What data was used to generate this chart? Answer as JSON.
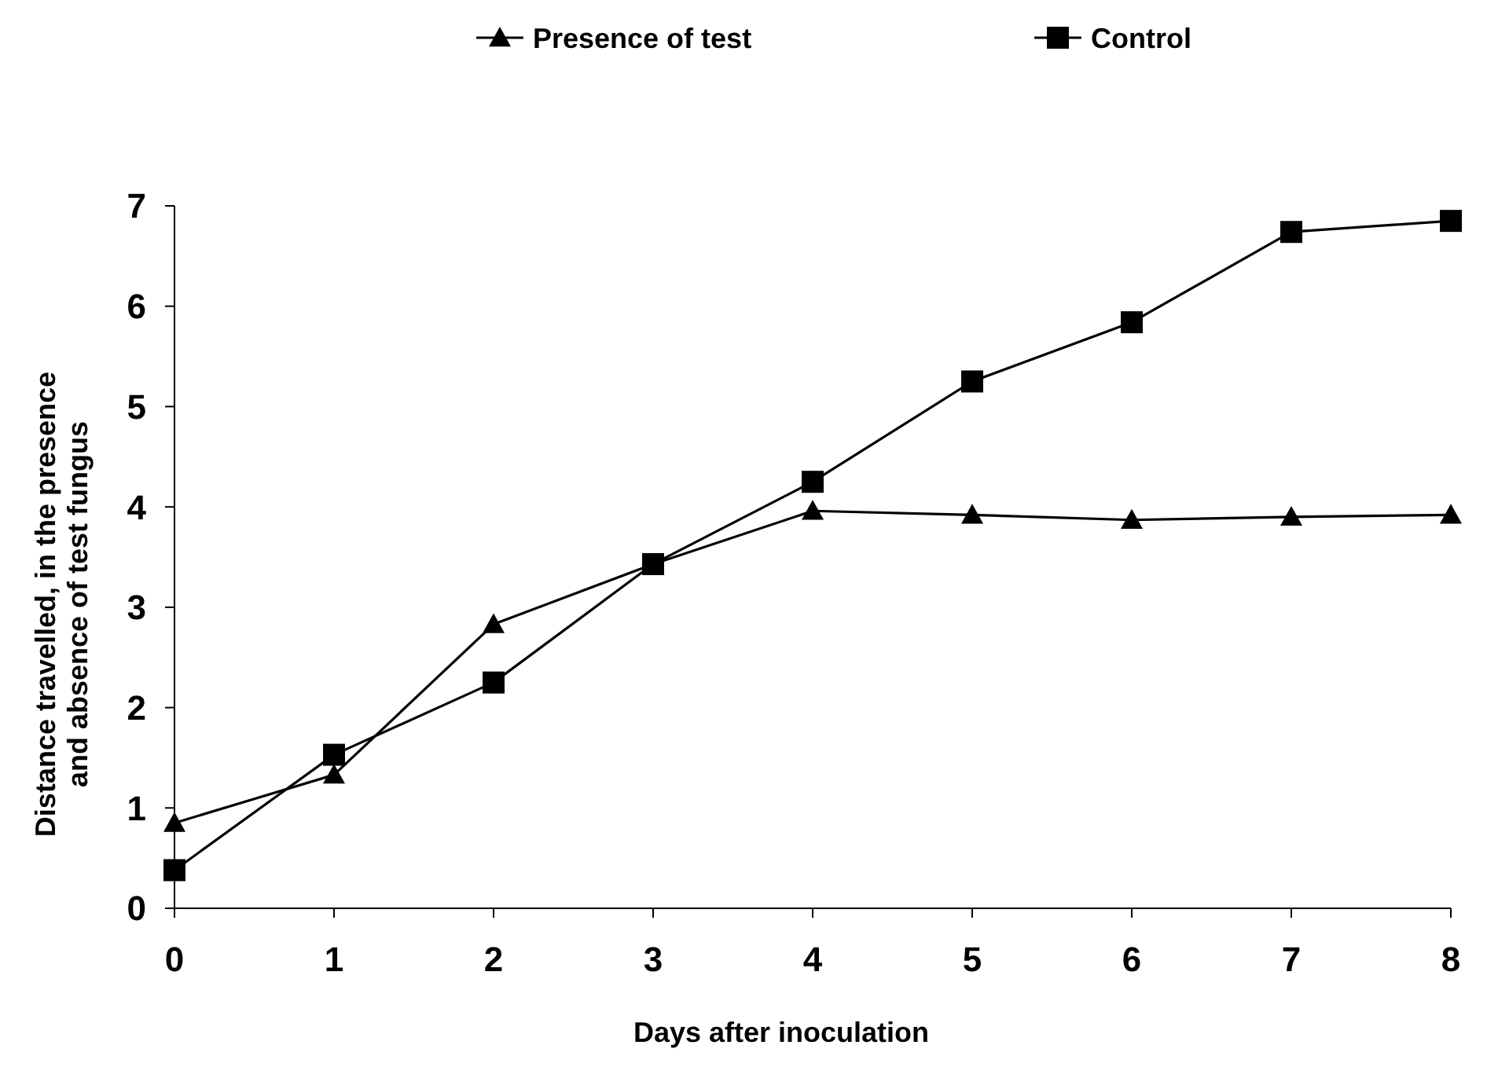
{
  "chart_data": {
    "type": "line",
    "xlabel": "Days after inoculation",
    "ylabel": "Distance travelled, in the presence and absence of test fungus",
    "categories": [
      "0",
      "1",
      "2",
      "3",
      "4",
      "5",
      "6",
      "7",
      "8"
    ],
    "series": [
      {
        "name": "Presence of test",
        "color": "#000000",
        "marker": "triangle",
        "values": [
          0.85,
          1.33,
          2.83,
          3.43,
          3.96,
          3.92,
          3.87,
          3.9,
          3.92
        ]
      },
      {
        "name": "Control",
        "color": "#000000",
        "marker": "square",
        "values": [
          0.38,
          1.53,
          2.25,
          3.43,
          4.25,
          5.25,
          5.84,
          6.74,
          6.85
        ]
      }
    ],
    "ylim": [
      0,
      7
    ],
    "yticks": [
      0,
      1,
      2,
      3,
      4,
      5,
      6,
      7
    ],
    "grid": false,
    "legend": "top",
    "line_style": "solid"
  }
}
